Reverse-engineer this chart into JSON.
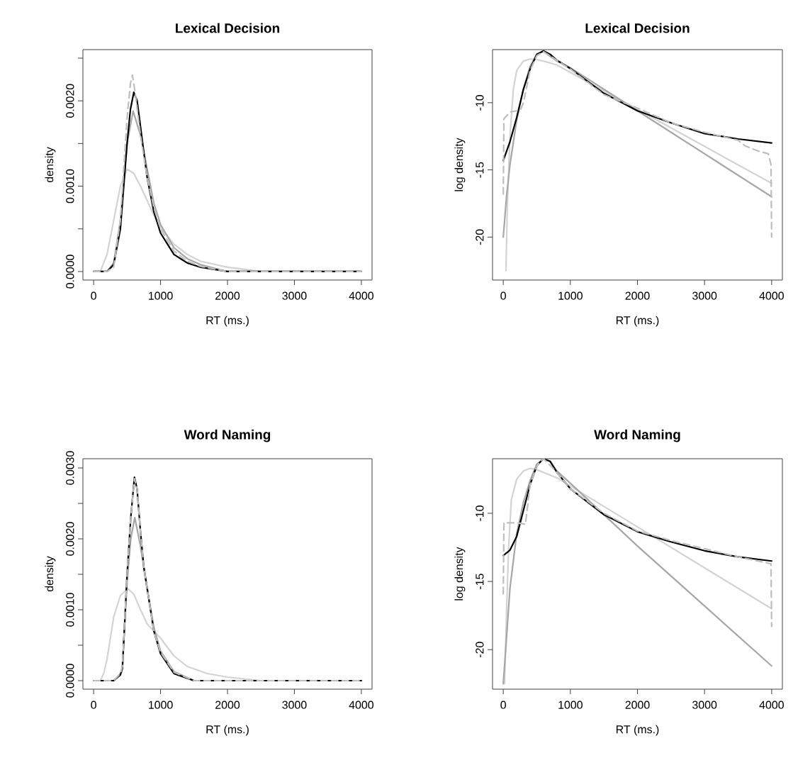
{
  "chart_data": [
    {
      "type": "line",
      "title": "Lexical Decision",
      "xlabel": "RT (ms.)",
      "ylabel": "density",
      "xlim": [
        -160,
        4160
      ],
      "ylim": [
        -0.0001,
        0.0026
      ],
      "xticks": [
        0,
        1000,
        2000,
        3000,
        4000
      ],
      "yticks": [
        {
          "value": 0,
          "label": "0.0000"
        },
        {
          "value": 0.0005,
          "label": null
        },
        {
          "value": 0.001,
          "label": "0.0010"
        },
        {
          "value": 0.0015,
          "label": null
        },
        {
          "value": 0.002,
          "label": "0.0020"
        },
        {
          "value": 0.0025,
          "label": null
        }
      ],
      "series": [
        {
          "color": "#d3d3d3",
          "x": [
            0,
            100,
            200,
            300,
            400,
            500,
            600,
            700,
            800,
            900,
            1000,
            1200,
            1400,
            1600,
            2000,
            2500,
            3000,
            4000
          ],
          "values": [
            0,
            0,
            0.0002,
            0.0006,
            0.001,
            0.0012,
            0.00115,
            0.001,
            0.00083,
            0.00066,
            0.00052,
            0.00032,
            0.0002,
            0.00012,
            5e-05,
            0,
            0,
            0
          ]
        },
        {
          "color": "#a6a6a6",
          "x": [
            0,
            200,
            300,
            400,
            500,
            590,
            700,
            800,
            900,
            1000,
            1200,
            1400,
            1600,
            2000,
            3000,
            4000
          ],
          "values": [
            0,
            0,
            0.0001,
            0.0006,
            0.0015,
            0.00188,
            0.0016,
            0.0012,
            0.0008,
            0.00055,
            0.00028,
            0.00015,
            8e-05,
            0,
            0,
            0
          ]
        },
        {
          "color": "#000000",
          "x": [
            0,
            100,
            200,
            300,
            400,
            500,
            550,
            600,
            650,
            700,
            800,
            900,
            1000,
            1200,
            1400,
            1600,
            2000,
            3000,
            4000
          ],
          "values": [
            0,
            0,
            0,
            8e-05,
            0.0005,
            0.0015,
            0.0019,
            0.0021,
            0.002,
            0.0017,
            0.0011,
            0.0007,
            0.00045,
            0.0002,
            0.0001,
            5e-05,
            0,
            0,
            0
          ]
        },
        {
          "color": "#bebebe",
          "line_style": "dashed",
          "x": [
            0,
            200,
            300,
            400,
            500,
            550,
            580,
            620,
            700,
            800,
            900,
            1000,
            1200,
            1400,
            1600,
            2000,
            3000,
            4000
          ],
          "values": [
            0,
            0,
            5e-05,
            0.0006,
            0.0018,
            0.0022,
            0.0023,
            0.0021,
            0.0016,
            0.0011,
            0.00075,
            0.0005,
            0.00024,
            0.00012,
            6e-05,
            0,
            0,
            0
          ]
        }
      ]
    },
    {
      "type": "line",
      "title": "Lexical Decision",
      "xlabel": "RT (ms.)",
      "ylabel": "log density",
      "xlim": [
        -160,
        4160
      ],
      "ylim": [
        -23.2,
        -6.05
      ],
      "xticks": [
        0,
        1000,
        2000,
        3000,
        4000
      ],
      "yticks": [
        -20,
        -15,
        -10
      ],
      "series": [
        {
          "color": "#d3d3d3",
          "x": [
            40,
            60,
            100,
            150,
            200,
            300,
            400,
            500,
            600,
            800,
            2000,
            3000,
            4000
          ],
          "values": [
            -22.5,
            -17.8,
            -12.5,
            -9.0,
            -7.6,
            -6.9,
            -6.75,
            -6.8,
            -6.9,
            -7.2,
            -10.5,
            -13.25,
            -16.0
          ]
        },
        {
          "color": "#a6a6a6",
          "x": [
            0,
            50,
            100,
            200,
            300,
            400,
            500,
            600,
            800,
            1000,
            2000,
            3000,
            4000
          ],
          "values": [
            -20,
            -16.9,
            -14.6,
            -11.3,
            -9.0,
            -7.3,
            -6.37,
            -6.2,
            -6.9,
            -7.4,
            -10.6,
            -13.8,
            -17.0
          ]
        },
        {
          "color": "#000000",
          "x": [
            0,
            100,
            200,
            300,
            400,
            500,
            600,
            700,
            800,
            1000,
            1500,
            2000,
            2500,
            3000,
            3500,
            4000
          ],
          "values": [
            -14.3,
            -12.9,
            -11.1,
            -9.0,
            -7.5,
            -6.4,
            -6.14,
            -6.4,
            -6.84,
            -7.46,
            -9.3,
            -10.6,
            -11.5,
            -12.3,
            -12.7,
            -13.0
          ]
        },
        {
          "color": "#bebebe",
          "line_style": "dashed",
          "x": [
            0,
            10,
            100,
            200,
            260,
            300,
            400,
            500,
            600,
            1000,
            1500,
            2000,
            2500,
            3000,
            3500,
            3600,
            3800,
            3950,
            3990,
            4000
          ],
          "values": [
            -16.8,
            -11.2,
            -10.7,
            -10.6,
            -10.5,
            -10.0,
            -7.6,
            -6.5,
            -6.2,
            -7.5,
            -9.4,
            -10.4,
            -11.5,
            -12.2,
            -12.8,
            -13.2,
            -13.6,
            -13.8,
            -14.6,
            -20
          ]
        }
      ]
    },
    {
      "type": "line",
      "title": "Word Naming",
      "xlabel": "RT (ms.)",
      "ylabel": "density",
      "xlim": [
        -160,
        4160
      ],
      "ylim": [
        -0.00012,
        0.00313
      ],
      "xticks": [
        0,
        1000,
        2000,
        3000,
        4000
      ],
      "yticks": [
        {
          "value": 0,
          "label": "0.0000"
        },
        {
          "value": 0.0005,
          "label": null
        },
        {
          "value": 0.001,
          "label": "0.0010"
        },
        {
          "value": 0.0015,
          "label": null
        },
        {
          "value": 0.002,
          "label": "0.0020"
        },
        {
          "value": 0.0025,
          "label": null
        },
        {
          "value": 0.003,
          "label": "0.0030"
        }
      ],
      "series": [
        {
          "color": "#d3d3d3",
          "x": [
            0,
            100,
            150,
            200,
            300,
            400,
            509,
            600,
            700,
            800,
            1000,
            1200,
            1400,
            1700,
            2000,
            2500,
            3000,
            4000
          ],
          "values": [
            0,
            0,
            0.0001,
            0.0003,
            0.0009,
            0.0012,
            0.0013,
            0.00122,
            0.001,
            0.0008,
            0.0006,
            0.00035,
            0.0002,
            0.0001,
            5e-05,
            0,
            0,
            0
          ]
        },
        {
          "color": "#a6a6a6",
          "x": [
            0,
            300,
            400,
            430,
            500,
            555,
            615,
            700,
            800,
            900,
            1000,
            1200,
            1500,
            2000,
            4000
          ],
          "values": [
            0,
            0,
            0.0001,
            0.0002,
            0.0014,
            0.002,
            0.0023,
            0.0019,
            0.0013,
            0.00075,
            0.00042,
            0.00013,
            0,
            0,
            0
          ]
        },
        {
          "color": "#000000",
          "x": [
            0,
            200,
            300,
            400,
            430,
            500,
            555,
            610,
            650,
            700,
            750,
            800,
            900,
            1000,
            1200,
            1500,
            2000,
            4000
          ],
          "values": [
            0,
            0,
            0,
            8e-05,
            0.00017,
            0.0015,
            0.0023,
            0.00287,
            0.0027,
            0.0021,
            0.0016,
            0.0013,
            0.0007,
            0.00038,
            0.0001,
            0,
            0,
            0
          ]
        },
        {
          "color": "#bebebe",
          "line_style": "dashed",
          "x": [
            0,
            300,
            400,
            430,
            500,
            555,
            610,
            650,
            700,
            750,
            800,
            900,
            1000,
            1200,
            1500,
            2000,
            4000
          ],
          "values": [
            0,
            0,
            0.0001,
            0.0002,
            0.0015,
            0.0023,
            0.00285,
            0.0027,
            0.0021,
            0.0016,
            0.0013,
            0.0007,
            0.0004,
            0.00012,
            0,
            0,
            0
          ]
        }
      ]
    },
    {
      "type": "line",
      "title": "Word Naming",
      "xlabel": "RT (ms.)",
      "ylabel": "log density",
      "xlim": [
        -160,
        4160
      ],
      "ylim": [
        -22.9,
        -6.0
      ],
      "xticks": [
        0,
        1000,
        2000,
        3000,
        4000
      ],
      "yticks": [
        -20,
        -15,
        -10
      ],
      "series": [
        {
          "color": "#d3d3d3",
          "x": [
            20,
            50,
            80,
            120,
            200,
            300,
            400,
            500,
            600,
            800,
            2000,
            3000,
            4000
          ],
          "values": [
            -22.5,
            -17.0,
            -12.5,
            -9.0,
            -7.5,
            -6.9,
            -6.7,
            -6.8,
            -7.0,
            -7.4,
            -11.0,
            -14.0,
            -17.0
          ]
        },
        {
          "color": "#a6a6a6",
          "x": [
            0,
            50,
            100,
            200,
            300,
            400,
            500,
            600,
            700,
            800,
            1000,
            2000,
            3000,
            4000
          ],
          "values": [
            -22.5,
            -19.0,
            -15.5,
            -11.5,
            -9.2,
            -7.6,
            -6.4,
            -6.0,
            -6.2,
            -6.9,
            -7.8,
            -12.4,
            -16.8,
            -21.2
          ]
        },
        {
          "color": "#000000",
          "x": [
            0,
            100,
            200,
            300,
            400,
            500,
            600,
            700,
            800,
            1000,
            1500,
            2000,
            2500,
            3000,
            3500,
            4000
          ],
          "values": [
            -13.1,
            -12.7,
            -11.7,
            -9.8,
            -7.9,
            -6.5,
            -6.0,
            -6.2,
            -7.0,
            -8.2,
            -10.1,
            -11.35,
            -12.1,
            -12.75,
            -13.2,
            -13.5
          ]
        },
        {
          "color": "#bebebe",
          "line_style": "dashed",
          "x": [
            0,
            10,
            200,
            330,
            400,
            500,
            600,
            800,
            1000,
            1500,
            2000,
            2500,
            3000,
            3500,
            3990,
            4000
          ],
          "values": [
            -15.9,
            -10.7,
            -10.7,
            -10.8,
            -7.9,
            -6.5,
            -6.0,
            -7.0,
            -8.2,
            -10.0,
            -11.3,
            -12.0,
            -12.6,
            -13.2,
            -13.7,
            -18.3
          ]
        }
      ]
    }
  ]
}
